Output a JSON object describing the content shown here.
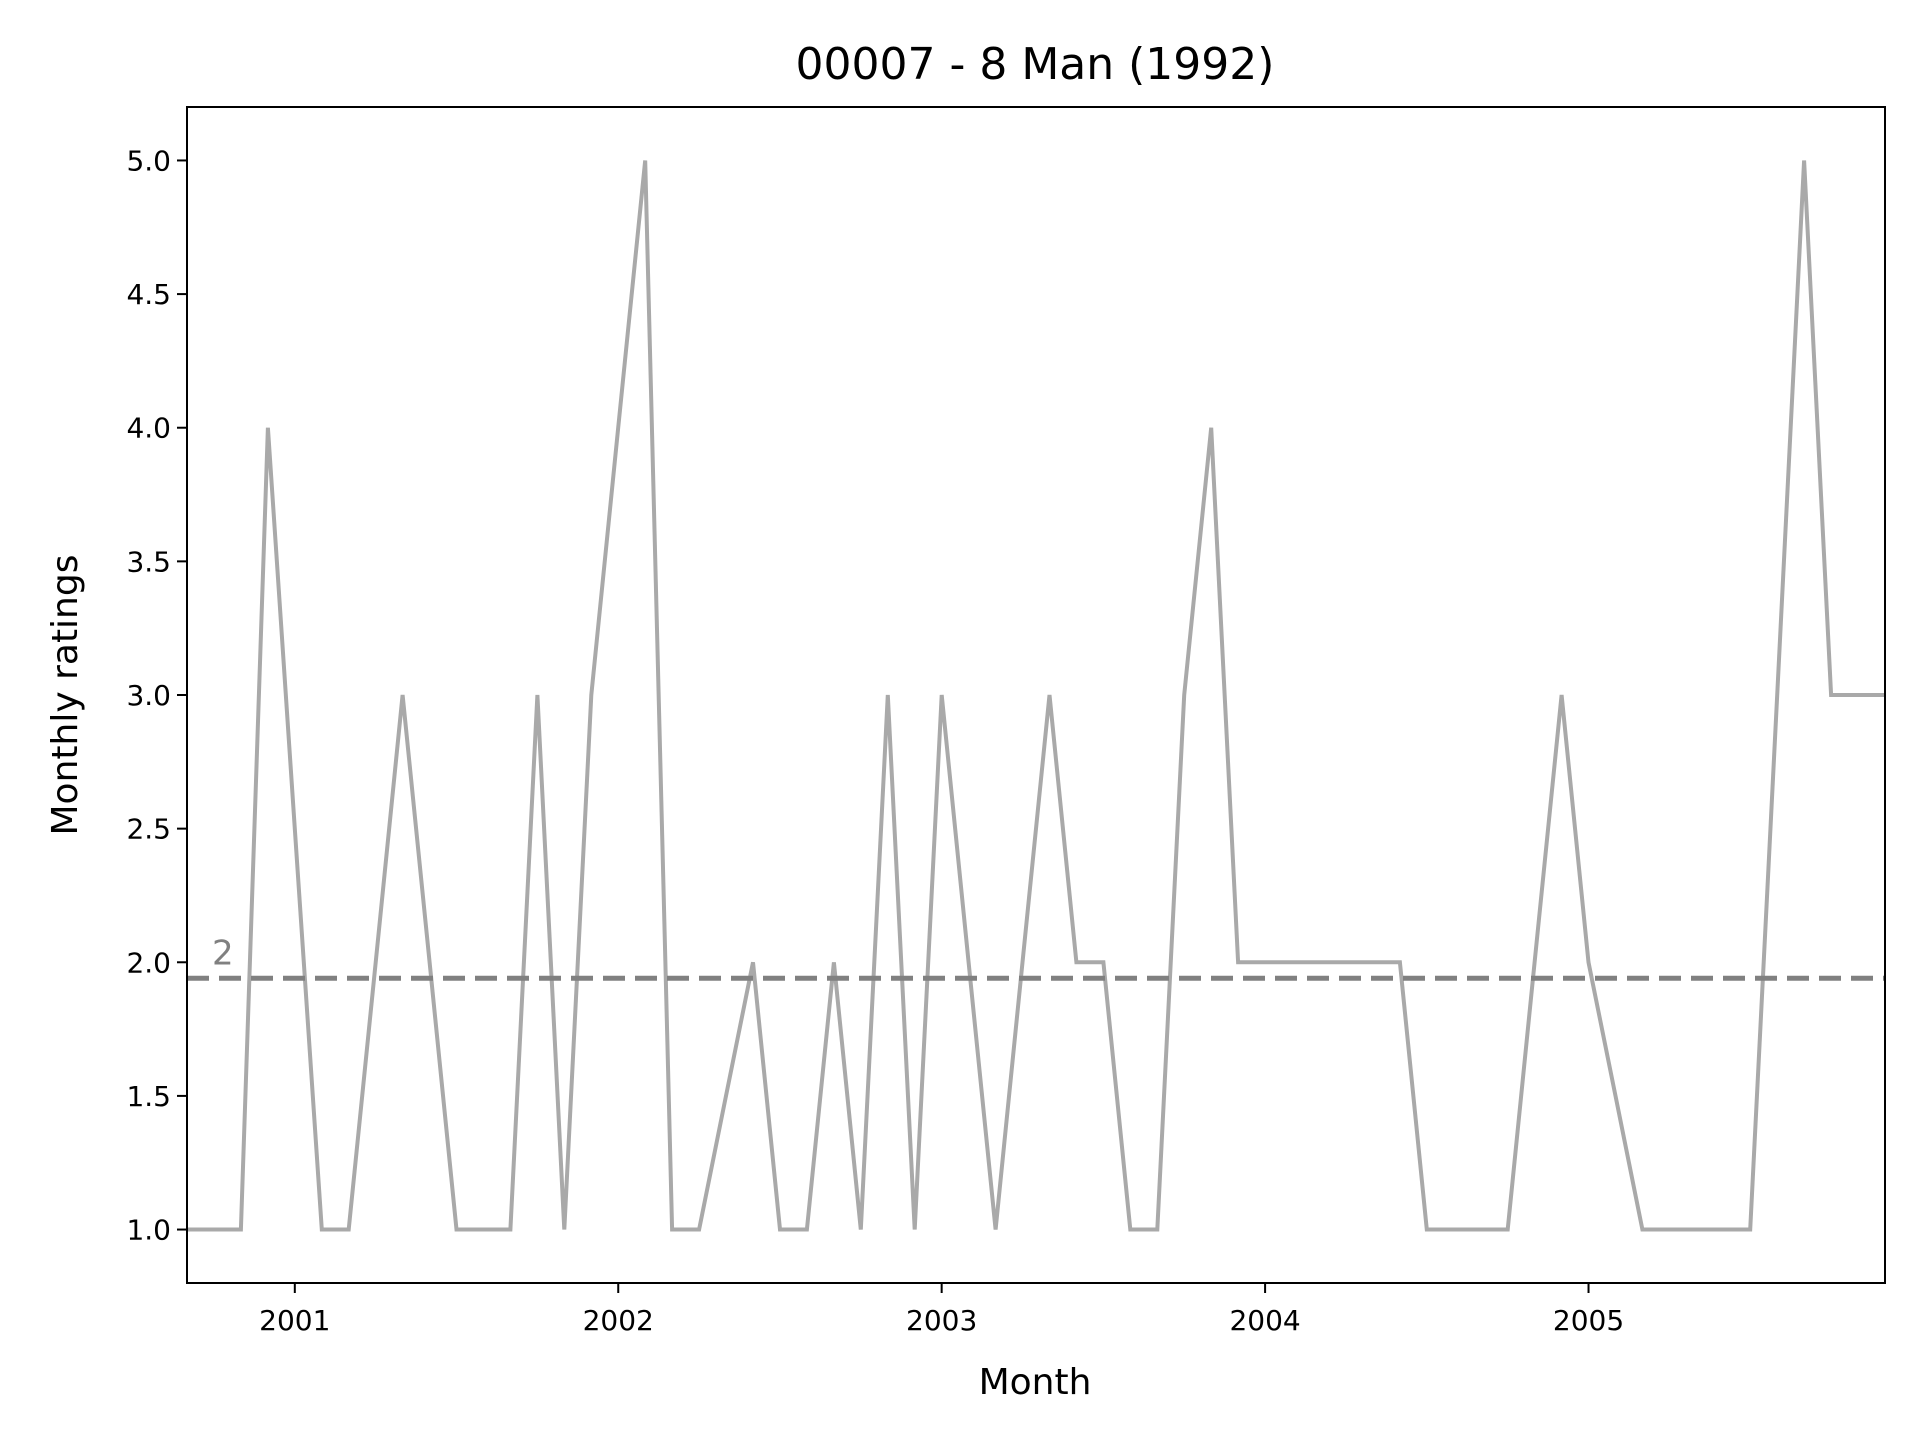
{
  "chart_data": {
    "type": "line",
    "title": "00007 - 8 Man (1992)",
    "xlabel": "Month",
    "ylabel": "Monthly ratings",
    "xlim": [
      "2000-09-01",
      "2005-12-01"
    ],
    "ylim": [
      0.8,
      5.2
    ],
    "grid": false,
    "x_ticks": [
      {
        "label": "2001",
        "date": "2001-01-01"
      },
      {
        "label": "2002",
        "date": "2002-01-01"
      },
      {
        "label": "2003",
        "date": "2003-01-01"
      },
      {
        "label": "2004",
        "date": "2004-01-01"
      },
      {
        "label": "2005",
        "date": "2005-01-01"
      }
    ],
    "y_ticks": [
      "1.0",
      "1.5",
      "2.0",
      "2.5",
      "3.0",
      "3.5",
      "4.0",
      "4.5",
      "5.0"
    ],
    "series": [
      {
        "color": "#a9a9a9",
        "x": [
          "2000-09",
          "2000-10",
          "2000-11",
          "2000-12",
          "2001-01",
          "2001-02",
          "2001-03",
          "2001-04",
          "2001-05",
          "2001-06",
          "2001-07",
          "2001-08",
          "2001-09",
          "2001-10",
          "2001-11",
          "2001-12",
          "2002-01",
          "2002-02",
          "2002-03",
          "2002-04",
          "2002-05",
          "2002-06",
          "2002-07",
          "2002-08",
          "2002-09",
          "2002-10",
          "2002-11",
          "2002-12",
          "2003-01",
          "2003-02",
          "2003-03",
          "2003-04",
          "2003-05",
          "2003-06",
          "2003-07",
          "2003-08",
          "2003-09",
          "2003-10",
          "2003-11",
          "2003-12",
          "2004-01",
          "2004-02",
          "2004-03",
          "2004-04",
          "2004-05",
          "2004-06",
          "2004-07",
          "2004-08",
          "2004-09",
          "2004-10",
          "2004-11",
          "2004-12",
          "2005-01",
          "2005-02",
          "2005-03",
          "2005-04",
          "2005-05",
          "2005-06",
          "2005-07",
          "2005-08",
          "2005-09",
          "2005-10",
          "2005-11",
          "2005-12"
        ],
        "values": [
          1,
          1,
          1,
          4,
          2.5,
          1,
          1,
          2,
          3,
          2,
          1,
          1,
          1,
          3,
          1,
          3,
          4,
          5,
          1,
          1,
          1.5,
          2,
          1,
          1,
          2,
          1,
          3,
          1,
          3,
          2,
          1,
          2,
          3,
          2,
          2,
          1,
          1,
          3,
          4,
          2,
          2,
          2,
          2,
          2,
          2,
          2,
          1,
          1,
          1,
          1,
          2,
          3,
          2,
          1.5,
          1,
          1,
          1,
          1,
          1,
          3,
          5,
          3,
          3,
          3
        ]
      }
    ],
    "reference_line": {
      "value": 1.94,
      "label": "2",
      "color": "#808080",
      "style": "dashed"
    }
  }
}
